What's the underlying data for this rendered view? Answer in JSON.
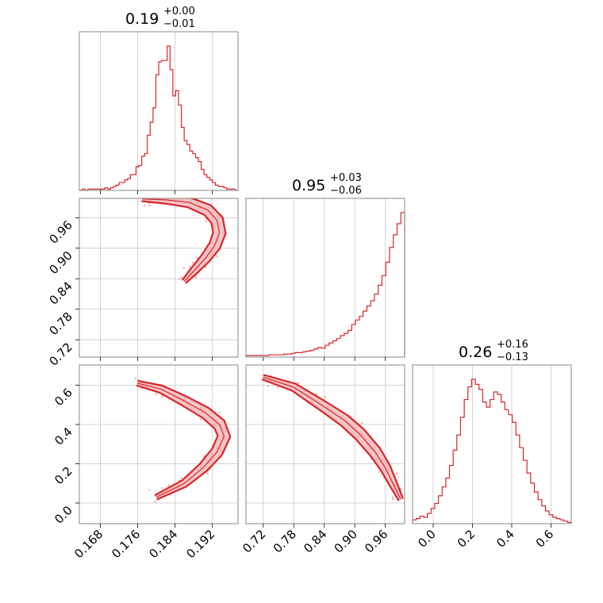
{
  "colors": {
    "accent": "#d62728",
    "contour_fill": "#f2b1b4",
    "grid": "#c8c8c8",
    "frame": "#888888"
  },
  "chart_data": {
    "type": "corner",
    "parameters": [
      {
        "range": [
          0.1635,
          0.1975
        ],
        "ticks": [
          0.168,
          0.176,
          0.184,
          0.192
        ],
        "tick_labels": [
          "0.168",
          "0.176",
          "0.184",
          "0.192"
        ],
        "title": {
          "main": "0.19",
          "upper": "+0.00",
          "lower": "−0.01"
        }
      },
      {
        "range": [
          0.686,
          0.998
        ],
        "ticks": [
          0.72,
          0.78,
          0.84,
          0.9,
          0.96
        ],
        "tick_labels": [
          "0.72",
          "0.78",
          "0.84",
          "0.90",
          "0.96"
        ],
        "title": {
          "main": "0.95",
          "upper": "+0.03",
          "lower": "−0.06"
        }
      },
      {
        "range": [
          -0.105,
          0.703
        ],
        "ticks": [
          0.0,
          0.2,
          0.4,
          0.6
        ],
        "tick_labels": [
          "0.0",
          "0.2",
          "0.4",
          "0.6"
        ],
        "title": {
          "main": "0.26",
          "upper": "+0.16",
          "lower": "−0.13"
        }
      }
    ],
    "marginals": [
      {
        "param": 0,
        "counts": [
          0,
          1,
          0,
          1,
          1,
          1,
          1,
          1,
          1,
          2,
          1,
          2,
          3,
          4,
          6,
          6,
          8,
          9,
          12,
          12,
          18,
          19,
          26,
          28,
          42,
          52,
          63,
          88,
          98,
          99,
          99,
          110,
          92,
          72,
          76,
          65,
          48,
          38,
          35,
          30,
          28,
          25,
          22,
          16,
          12,
          10,
          8,
          6,
          4,
          3,
          3,
          2,
          1,
          1,
          1,
          0
        ]
      },
      {
        "param": 1,
        "counts": [
          2,
          2,
          2,
          2,
          2,
          2,
          3,
          3,
          3,
          3,
          4,
          4,
          5,
          6,
          6,
          7,
          8,
          9,
          11,
          13,
          12,
          16,
          19,
          22,
          25,
          29,
          32,
          36,
          44,
          50,
          55,
          62,
          69,
          76,
          85,
          97,
          110,
          128,
          148,
          165,
          180,
          195
        ]
      },
      {
        "param": 2,
        "counts": [
          3,
          4,
          6,
          5,
          8,
          12,
          16,
          22,
          29,
          36,
          46,
          58,
          70,
          84,
          98,
          108,
          114,
          110,
          106,
          96,
          92,
          98,
          104,
          102,
          96,
          90,
          86,
          80,
          70,
          60,
          50,
          40,
          32,
          25,
          19,
          14,
          10,
          7,
          5,
          4,
          3,
          2,
          1
        ]
      }
    ],
    "joint_2d": [
      {
        "x_param": 0,
        "y_param": 1,
        "ridge": [
          [
            0.177,
            0.997
          ],
          [
            0.182,
            0.995
          ],
          [
            0.187,
            0.99
          ],
          [
            0.191,
            0.975
          ],
          [
            0.193,
            0.955
          ],
          [
            0.1935,
            0.93
          ],
          [
            0.1925,
            0.905
          ],
          [
            0.1905,
            0.88
          ],
          [
            0.188,
            0.855
          ],
          [
            0.186,
            0.835
          ]
        ]
      },
      {
        "x_param": 0,
        "y_param": 2,
        "ridge": [
          [
            0.176,
            0.61
          ],
          [
            0.181,
            0.58
          ],
          [
            0.186,
            0.52
          ],
          [
            0.1905,
            0.46
          ],
          [
            0.1935,
            0.4
          ],
          [
            0.1945,
            0.34
          ],
          [
            0.193,
            0.26
          ],
          [
            0.19,
            0.18
          ],
          [
            0.186,
            0.1
          ],
          [
            0.18,
            0.03
          ]
        ]
      },
      {
        "x_param": 1,
        "y_param": 2,
        "ridge": [
          [
            0.72,
            0.64
          ],
          [
            0.78,
            0.59
          ],
          [
            0.84,
            0.49
          ],
          [
            0.88,
            0.42
          ],
          [
            0.91,
            0.35
          ],
          [
            0.94,
            0.26
          ],
          [
            0.96,
            0.18
          ],
          [
            0.975,
            0.1
          ],
          [
            0.99,
            0.02
          ]
        ]
      }
    ],
    "grid": true
  }
}
